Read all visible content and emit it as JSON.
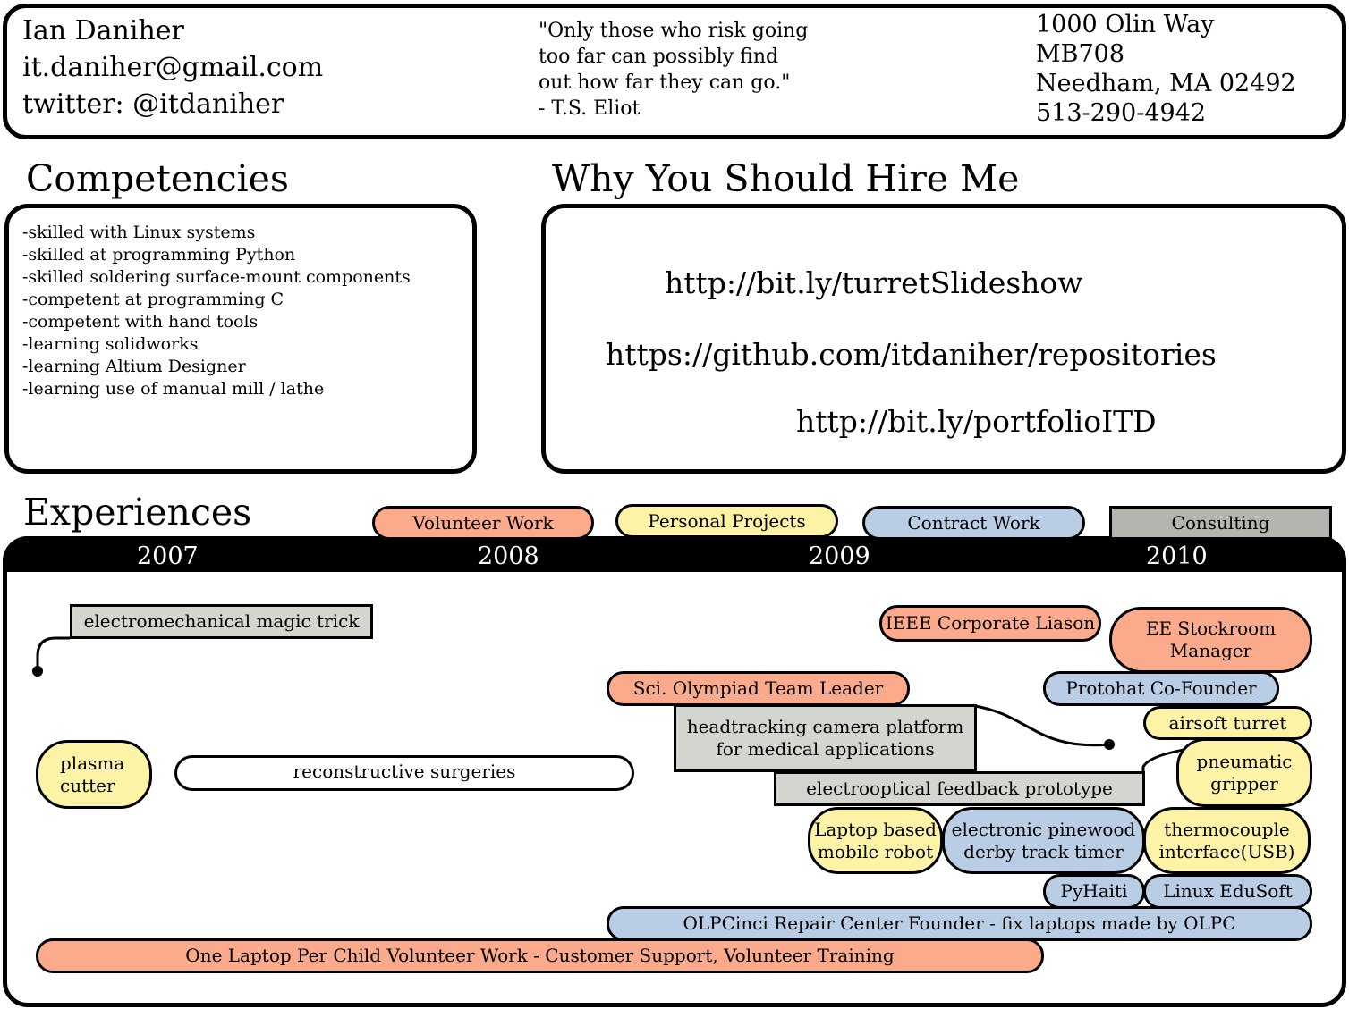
{
  "header": {
    "contact": [
      "Ian Daniher",
      "it.daniher@gmail.com",
      "twitter: @itdaniher"
    ],
    "quote": [
      "\"Only those who risk going",
      "too far can possibly find",
      "out how far they can go.\"",
      "- T.S. Eliot"
    ],
    "address": [
      "1000 Olin Way",
      "MB708",
      "Needham, MA 02492",
      "513-290-4942"
    ]
  },
  "competencies": {
    "title": "Competencies",
    "items": [
      "-skilled with Linux systems",
      "-skilled at programming Python",
      "-skilled soldering surface-mount components",
      "",
      "-competent at programming C",
      "-competent with hand tools",
      "",
      "-learning solidworks",
      "-learning Altium Designer",
      "-learning use of manual mill / lathe"
    ]
  },
  "hire": {
    "title": "Why You Should Hire Me",
    "links": [
      "http://bit.ly/turretSlideshow",
      "https://github.com/itdaniher/repositories",
      "http://bit.ly/portfolioITD"
    ]
  },
  "experiences": {
    "title": "Experiences",
    "legend": [
      {
        "label": "Volunteer Work",
        "color": "#fbab8b"
      },
      {
        "label": "Personal Projects",
        "color": "#fcf3a6"
      },
      {
        "label": "Contract Work",
        "color": "#b9cde5"
      },
      {
        "label": "Consulting",
        "color": "#b4b5af"
      }
    ],
    "years": [
      "2007",
      "2008",
      "2009",
      "2010"
    ],
    "items": [
      {
        "lines": [
          "electromechanical magic trick"
        ],
        "category": "Consulting"
      },
      {
        "lines": [
          "IEEE Corporate Liason"
        ],
        "category": "Volunteer Work"
      },
      {
        "lines": [
          "EE Stockroom",
          "Manager"
        ],
        "category": "Volunteer Work"
      },
      {
        "lines": [
          "Sci. Olympiad Team Leader"
        ],
        "category": "Volunteer Work"
      },
      {
        "lines": [
          "Protohat Co-Founder"
        ],
        "category": "Contract Work"
      },
      {
        "lines": [
          "airsoft turret"
        ],
        "category": "Personal Projects"
      },
      {
        "lines": [
          "headtracking camera platform",
          "for medical applications"
        ],
        "category": "Consulting"
      },
      {
        "lines": [
          "pneumatic",
          "gripper"
        ],
        "category": "Personal Projects"
      },
      {
        "lines": [
          "plasma",
          "cutter"
        ],
        "category": "Personal Projects"
      },
      {
        "lines": [
          "reconstructive surgeries"
        ],
        "category": ""
      },
      {
        "lines": [
          "electrooptical feedback prototype"
        ],
        "category": "Consulting"
      },
      {
        "lines": [
          "Laptop based",
          "mobile robot"
        ],
        "category": "Personal Projects"
      },
      {
        "lines": [
          "electronic pinewood",
          "derby track timer"
        ],
        "category": "Contract Work"
      },
      {
        "lines": [
          "thermocouple",
          "interface(USB)"
        ],
        "category": "Personal Projects"
      },
      {
        "lines": [
          "PyHaiti"
        ],
        "category": "Contract Work"
      },
      {
        "lines": [
          "Linux EduSoft"
        ],
        "category": "Contract Work"
      },
      {
        "lines": [
          "OLPCinci Repair Center Founder - fix laptops made by OLPC"
        ],
        "category": "Contract Work"
      },
      {
        "lines": [
          "One Laptop Per Child Volunteer Work - Customer Support, Volunteer Training"
        ],
        "category": "Volunteer Work"
      }
    ]
  }
}
